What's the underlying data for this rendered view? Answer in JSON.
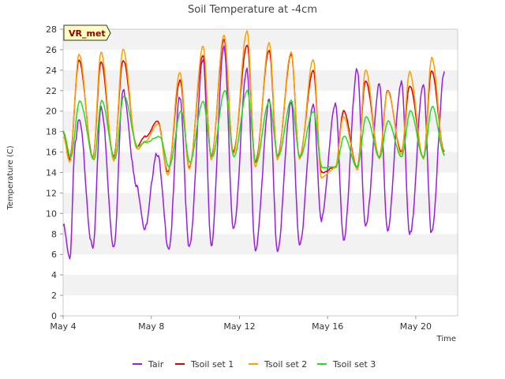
{
  "chart_data": {
    "type": "line",
    "title": "Soil Temperature at -4cm",
    "xlabel": "Time",
    "ylabel": "Temperature (C)",
    "badge": "VR_met",
    "xlim": [
      4.0,
      21.9
    ],
    "ylim": [
      0,
      28
    ],
    "y_ticks": [
      0,
      2,
      4,
      6,
      8,
      10,
      12,
      14,
      16,
      18,
      20,
      22,
      24,
      26,
      28
    ],
    "x_ticks": [
      {
        "day": 4,
        "label": "May 4"
      },
      {
        "day": 8,
        "label": "May 8"
      },
      {
        "day": 12,
        "label": "May 12"
      },
      {
        "day": 16,
        "label": "May 16"
      },
      {
        "day": 20,
        "label": "May 20"
      }
    ],
    "grid": "horizontal bands",
    "legend_position": "bottom",
    "day_min": [
      5.5,
      6.5,
      6.8,
      8.5,
      6.7,
      6.5,
      7.0,
      8.5,
      6.2,
      6.5,
      6.8,
      9.5,
      7.5,
      8.5,
      8.5,
      7.8,
      8.0
    ],
    "day_max": [
      19.0,
      20.5,
      22.0,
      16.0,
      21.5,
      25.0,
      26.5,
      24.0,
      21.0,
      21.0,
      20.5,
      20.8,
      24.0,
      22.5,
      23.0,
      22.5,
      24.0
    ],
    "series": [
      {
        "name": "Tair",
        "color": "#9a1de5",
        "x": [
          4.0,
          4.3,
          4.55,
          4.72,
          5.35,
          5.72,
          6.3,
          6.72,
          7.35,
          7.72,
          8.25,
          8.8,
          9.3,
          9.72,
          10.35,
          10.72,
          11.3,
          11.72,
          12.35,
          12.72,
          13.35,
          13.72,
          14.35,
          14.72,
          15.35,
          15.72,
          16.35,
          16.72,
          17.35,
          17.72,
          18.35,
          18.72,
          19.35,
          19.72,
          20.35,
          20.72,
          21.3
        ],
        "y": [
          8.8,
          5.5,
          17.0,
          19.0,
          6.5,
          20.5,
          6.8,
          22.0,
          12.5,
          8.5,
          16.0,
          6.7,
          21.5,
          6.5,
          25.0,
          7.0,
          26.5,
          8.5,
          24.0,
          6.2,
          21.0,
          6.5,
          21.0,
          6.8,
          20.5,
          9.5,
          20.8,
          7.5,
          24.0,
          8.5,
          22.5,
          8.5,
          23.0,
          7.8,
          22.5,
          8.0,
          24.0
        ]
      },
      {
        "name": "Tsoil set 1",
        "color": "#dd0000",
        "x": [
          4.0,
          4.3,
          4.72,
          5.35,
          5.72,
          6.3,
          6.72,
          7.35,
          7.72,
          8.3,
          8.75,
          9.3,
          9.72,
          10.35,
          10.72,
          11.3,
          11.72,
          12.35,
          12.72,
          13.35,
          13.72,
          14.35,
          14.72,
          15.35,
          15.72,
          16.35,
          16.72,
          17.35,
          17.72,
          18.35,
          18.72,
          19.35,
          19.72,
          20.35,
          20.72,
          21.3
        ],
        "y": [
          18.0,
          15.3,
          25.0,
          15.5,
          24.8,
          15.5,
          25.0,
          16.5,
          17.5,
          19.0,
          14.0,
          23.0,
          14.5,
          25.5,
          15.5,
          27.0,
          16.0,
          26.5,
          15.0,
          26.0,
          15.5,
          25.5,
          15.5,
          24.0,
          14.0,
          14.5,
          20.0,
          14.5,
          23.0,
          15.5,
          22.0,
          16.0,
          22.5,
          15.5,
          24.0,
          16.0
        ]
      },
      {
        "name": "Tsoil set 2",
        "color": "#ff9f00",
        "x": [
          4.0,
          4.3,
          4.72,
          5.35,
          5.72,
          6.3,
          6.72,
          7.35,
          7.72,
          8.3,
          8.75,
          9.3,
          9.72,
          10.35,
          10.72,
          11.3,
          11.72,
          12.35,
          12.72,
          13.35,
          13.72,
          14.35,
          14.72,
          15.35,
          15.72,
          16.35,
          16.72,
          17.35,
          17.72,
          18.35,
          18.72,
          19.35,
          19.72,
          20.35,
          20.72,
          21.3
        ],
        "y": [
          17.5,
          15.0,
          25.5,
          15.3,
          25.8,
          15.2,
          26.0,
          16.3,
          17.0,
          18.8,
          13.8,
          23.8,
          14.3,
          26.3,
          15.3,
          27.5,
          15.8,
          27.8,
          14.5,
          26.7,
          15.3,
          25.8,
          15.3,
          25.0,
          13.5,
          14.5,
          19.5,
          14.3,
          24.0,
          15.3,
          22.0,
          15.8,
          23.8,
          15.3,
          25.2,
          15.8
        ]
      },
      {
        "name": "Tsoil set 3",
        "color": "#22dd22",
        "x": [
          4.0,
          4.35,
          4.75,
          5.4,
          5.75,
          6.35,
          6.75,
          7.4,
          7.75,
          8.4,
          8.8,
          9.35,
          9.75,
          10.35,
          10.75,
          11.35,
          11.75,
          12.35,
          12.75,
          13.35,
          13.75,
          14.35,
          14.75,
          15.35,
          15.75,
          16.35,
          16.75,
          17.35,
          17.75,
          18.35,
          18.75,
          19.35,
          19.75,
          20.35,
          20.75,
          21.3
        ],
        "y": [
          18.0,
          15.5,
          21.0,
          15.3,
          21.0,
          15.3,
          21.5,
          16.5,
          17.0,
          17.5,
          14.5,
          20.0,
          15.0,
          21.0,
          15.5,
          22.0,
          15.5,
          22.0,
          15.0,
          21.0,
          15.5,
          21.0,
          15.5,
          20.0,
          14.5,
          14.5,
          17.5,
          14.5,
          19.5,
          15.5,
          19.0,
          15.5,
          20.0,
          15.5,
          20.5,
          15.7
        ]
      }
    ]
  }
}
